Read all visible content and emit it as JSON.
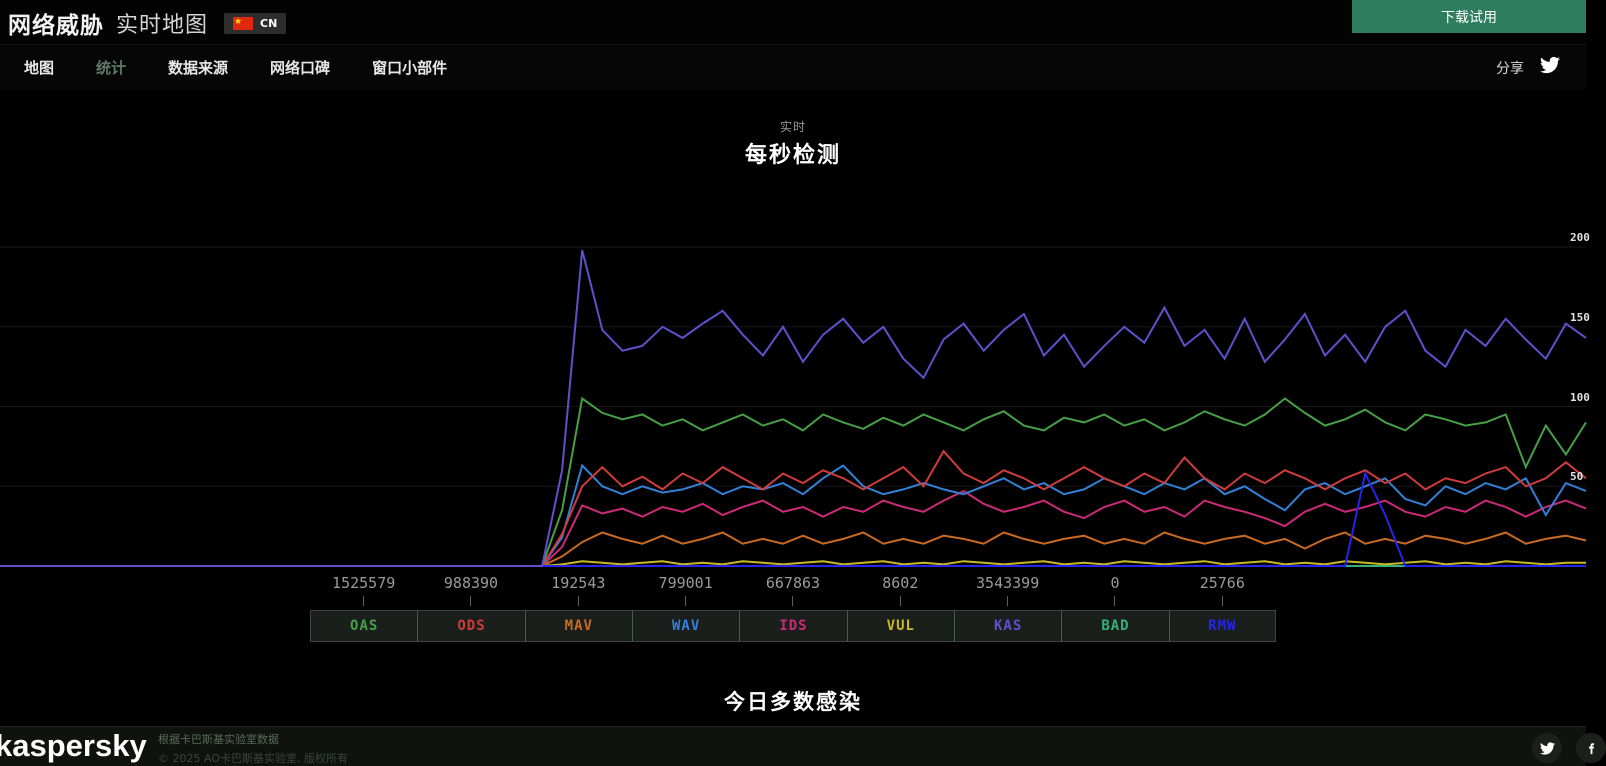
{
  "header": {
    "brand_bold": "网络威胁",
    "brand_light": "实时地图",
    "language_code": "CN",
    "download_label": "下载试用",
    "accent_green": "#2e7d5f"
  },
  "nav": {
    "items": [
      {
        "label": "地图",
        "active": false
      },
      {
        "label": "统计",
        "active": true
      },
      {
        "label": "数据来源",
        "active": false
      },
      {
        "label": "网络口碑",
        "active": false
      },
      {
        "label": "窗口小部件",
        "active": false
      }
    ],
    "share_label": "分享"
  },
  "sections": {
    "chart_subtitle": "实时",
    "chart_title": "每秒检测",
    "next_title": "今日多数感染"
  },
  "chart_data": {
    "type": "line",
    "title": "每秒检测",
    "subtitle": "实时",
    "ylim": [
      0,
      200
    ],
    "y_ticks": [
      50,
      100,
      150,
      200
    ],
    "grid": true,
    "legend_position": "bottom",
    "draw_order": [
      "BAD",
      "VUL",
      "MAV",
      "IDS",
      "WAV",
      "ODS",
      "RMW",
      "OAS",
      "KAS"
    ],
    "series": [
      {
        "name": "OAS",
        "color": "#46a046",
        "today_total": "1525579",
        "values": [
          0,
          0,
          0,
          0,
          0,
          0,
          0,
          0,
          0,
          0,
          0,
          0,
          0,
          0,
          0,
          0,
          0,
          0,
          0,
          0,
          0,
          0,
          0,
          0,
          0,
          0,
          0,
          0,
          35,
          105,
          96,
          92,
          95,
          88,
          92,
          85,
          90,
          95,
          88,
          92,
          85,
          95,
          90,
          86,
          93,
          88,
          95,
          90,
          85,
          92,
          97,
          88,
          85,
          93,
          90,
          95,
          88,
          92,
          85,
          90,
          97,
          92,
          88,
          95,
          105,
          96,
          88,
          92,
          98,
          90,
          85,
          95,
          92,
          88,
          90,
          95,
          62,
          88,
          70,
          90
        ]
      },
      {
        "name": "ODS",
        "color": "#cf3c3c",
        "today_total": "988390",
        "values": [
          0,
          0,
          0,
          0,
          0,
          0,
          0,
          0,
          0,
          0,
          0,
          0,
          0,
          0,
          0,
          0,
          0,
          0,
          0,
          0,
          0,
          0,
          0,
          0,
          0,
          0,
          0,
          0,
          20,
          50,
          62,
          50,
          56,
          48,
          58,
          52,
          62,
          55,
          48,
          58,
          52,
          60,
          55,
          48,
          55,
          62,
          50,
          72,
          58,
          52,
          60,
          55,
          48,
          55,
          62,
          55,
          50,
          58,
          52,
          68,
          55,
          48,
          58,
          52,
          60,
          55,
          48,
          55,
          60,
          52,
          58,
          48,
          55,
          52,
          58,
          62,
          50,
          55,
          65,
          55
        ]
      },
      {
        "name": "MAV",
        "color": "#c96a22",
        "today_total": "192543",
        "values": [
          0,
          0,
          0,
          0,
          0,
          0,
          0,
          0,
          0,
          0,
          0,
          0,
          0,
          0,
          0,
          0,
          0,
          0,
          0,
          0,
          0,
          0,
          0,
          0,
          0,
          0,
          0,
          0,
          6,
          15,
          21,
          17,
          14,
          19,
          14,
          17,
          21,
          14,
          17,
          14,
          19,
          14,
          17,
          21,
          14,
          17,
          14,
          19,
          17,
          14,
          21,
          17,
          14,
          17,
          19,
          14,
          17,
          14,
          21,
          17,
          14,
          17,
          19,
          14,
          17,
          11,
          17,
          21,
          14,
          17,
          14,
          19,
          17,
          14,
          17,
          21,
          14,
          17,
          19,
          16
        ]
      },
      {
        "name": "WAV",
        "color": "#3380d8",
        "today_total": "799001",
        "values": [
          0,
          0,
          0,
          0,
          0,
          0,
          0,
          0,
          0,
          0,
          0,
          0,
          0,
          0,
          0,
          0,
          0,
          0,
          0,
          0,
          0,
          0,
          0,
          0,
          0,
          0,
          0,
          0,
          18,
          63,
          50,
          45,
          50,
          46,
          48,
          52,
          45,
          50,
          48,
          52,
          45,
          55,
          63,
          50,
          45,
          48,
          52,
          48,
          45,
          50,
          55,
          48,
          52,
          45,
          48,
          55,
          50,
          45,
          52,
          48,
          55,
          45,
          50,
          42,
          35,
          48,
          52,
          45,
          50,
          55,
          42,
          38,
          50,
          45,
          52,
          48,
          55,
          32,
          52,
          47
        ]
      },
      {
        "name": "IDS",
        "color": "#cc2a78",
        "today_total": "667863",
        "values": [
          0,
          0,
          0,
          0,
          0,
          0,
          0,
          0,
          0,
          0,
          0,
          0,
          0,
          0,
          0,
          0,
          0,
          0,
          0,
          0,
          0,
          0,
          0,
          0,
          0,
          0,
          0,
          0,
          12,
          38,
          33,
          36,
          31,
          37,
          34,
          39,
          32,
          37,
          41,
          34,
          37,
          31,
          37,
          34,
          41,
          37,
          34,
          41,
          47,
          39,
          34,
          37,
          41,
          34,
          30,
          37,
          41,
          34,
          37,
          31,
          41,
          37,
          34,
          30,
          25,
          34,
          39,
          34,
          37,
          41,
          34,
          31,
          37,
          34,
          41,
          37,
          31,
          37,
          41,
          36
        ]
      },
      {
        "name": "VUL",
        "color": "#c9b926",
        "today_total": "8602",
        "values": [
          0,
          0,
          0,
          0,
          0,
          0,
          0,
          0,
          0,
          0,
          0,
          0,
          0,
          0,
          0,
          0,
          0,
          0,
          0,
          0,
          0,
          0,
          0,
          0,
          0,
          0,
          0,
          0,
          1,
          3,
          2,
          1,
          2,
          3,
          1,
          2,
          1,
          3,
          2,
          1,
          2,
          3,
          1,
          2,
          3,
          1,
          2,
          1,
          3,
          2,
          1,
          2,
          3,
          1,
          2,
          1,
          3,
          2,
          1,
          2,
          3,
          1,
          2,
          3,
          1,
          2,
          1,
          3,
          2,
          1,
          2,
          3,
          1,
          2,
          1,
          3,
          2,
          1,
          2,
          2
        ]
      },
      {
        "name": "KAS",
        "color": "#6050cc",
        "today_total": "3543399",
        "values": [
          0,
          0,
          0,
          0,
          0,
          0,
          0,
          0,
          0,
          0,
          0,
          0,
          0,
          0,
          0,
          0,
          0,
          0,
          0,
          0,
          0,
          0,
          0,
          0,
          0,
          0,
          0,
          0,
          60,
          198,
          148,
          135,
          138,
          150,
          143,
          152,
          160,
          145,
          132,
          150,
          128,
          145,
          155,
          140,
          150,
          130,
          118,
          142,
          152,
          135,
          148,
          158,
          132,
          145,
          125,
          138,
          150,
          140,
          162,
          138,
          148,
          130,
          155,
          128,
          142,
          158,
          132,
          145,
          128,
          150,
          160,
          135,
          125,
          148,
          138,
          155,
          142,
          130,
          152,
          143
        ]
      },
      {
        "name": "BAD",
        "color": "#35b07a",
        "today_total": "0",
        "values": [
          0,
          0,
          0,
          0,
          0,
          0,
          0,
          0,
          0,
          0,
          0,
          0,
          0,
          0,
          0,
          0,
          0,
          0,
          0,
          0,
          0,
          0,
          0,
          0,
          0,
          0,
          0,
          0,
          0,
          0,
          0,
          0,
          0,
          0,
          0,
          0,
          0,
          0,
          0,
          0,
          0,
          0,
          0,
          0,
          0,
          0,
          0,
          0,
          0,
          0,
          0,
          0,
          0,
          0,
          0,
          0,
          0,
          0,
          0,
          0,
          0,
          0,
          0,
          0,
          0,
          0,
          0,
          0,
          0,
          0,
          0,
          0,
          0,
          0,
          0,
          0,
          0,
          0,
          0,
          0
        ]
      },
      {
        "name": "RMW",
        "color": "#2525e8",
        "today_total": "25766",
        "values": [
          0,
          0,
          0,
          0,
          0,
          0,
          0,
          0,
          0,
          0,
          0,
          0,
          0,
          0,
          0,
          0,
          0,
          0,
          0,
          0,
          0,
          0,
          0,
          0,
          0,
          0,
          0,
          0,
          0,
          0,
          0,
          0,
          0,
          0,
          0,
          0,
          0,
          0,
          0,
          0,
          0,
          0,
          0,
          0,
          0,
          0,
          0,
          0,
          0,
          0,
          0,
          0,
          0,
          0,
          0,
          0,
          0,
          0,
          0,
          0,
          0,
          0,
          0,
          0,
          0,
          0,
          0,
          0,
          58,
          32,
          0,
          0,
          0,
          0,
          0,
          0,
          0,
          0,
          0,
          0
        ]
      }
    ]
  },
  "footer": {
    "logo": "kaspersky",
    "line1": "根据卡巴斯基实验室数据",
    "line2": "© 2025 AO卡巴斯基实验室. 版权所有"
  }
}
